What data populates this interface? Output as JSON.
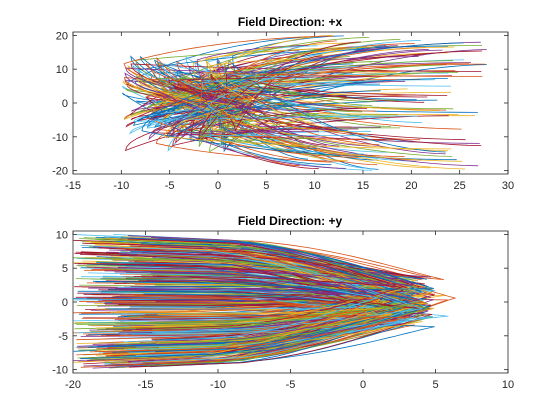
{
  "chart_data": [
    {
      "type": "line",
      "title": "Field Direction: +x",
      "xlabel": "",
      "ylabel": "",
      "xlim": [
        -15,
        30
      ],
      "ylim": [
        -21,
        21
      ],
      "xticks": [
        "-15",
        "-10",
        "-5",
        "0",
        "5",
        "10",
        "15",
        "20",
        "25",
        "30"
      ],
      "yticks": [
        "20",
        "10",
        "0",
        "-10",
        "-20"
      ],
      "grid": false,
      "legend": "none",
      "field_direction": "+x",
      "description": "Hundreds of curved trajectories emanating from near the origin, bending back and extending toward +x, spreading in y between -20 and 20.",
      "series_count": 200,
      "envelope": {
        "start_x_range": [
          -10,
          5
        ],
        "end_x_range": [
          8,
          28
        ],
        "y_range": [
          -20,
          20
        ]
      }
    },
    {
      "type": "line",
      "title": "Field Direction: +y",
      "xlabel": "",
      "ylabel": "",
      "xlim": [
        -20,
        10
      ],
      "ylim": [
        -10.5,
        10.5
      ],
      "xticks": [
        "-20",
        "-15",
        "-10",
        "-5",
        "0",
        "5",
        "10"
      ],
      "yticks": [
        "10",
        "5",
        "0",
        "-5",
        "-10"
      ],
      "grid": false,
      "legend": "none",
      "field_direction": "+y",
      "description": "Hundreds of curved trajectories running from the left edge near x=-20, converging and turning around near x=0 to 6.",
      "series_count": 260,
      "envelope": {
        "turnaround_x_range": [
          1,
          6.5
        ],
        "start_x_range": [
          -20,
          -12
        ],
        "y_range": [
          -10,
          10
        ]
      }
    }
  ],
  "colors": [
    "#0072BD",
    "#D95319",
    "#EDB120",
    "#7E2F8E",
    "#77AC30",
    "#4DBEEE",
    "#A2142F"
  ]
}
